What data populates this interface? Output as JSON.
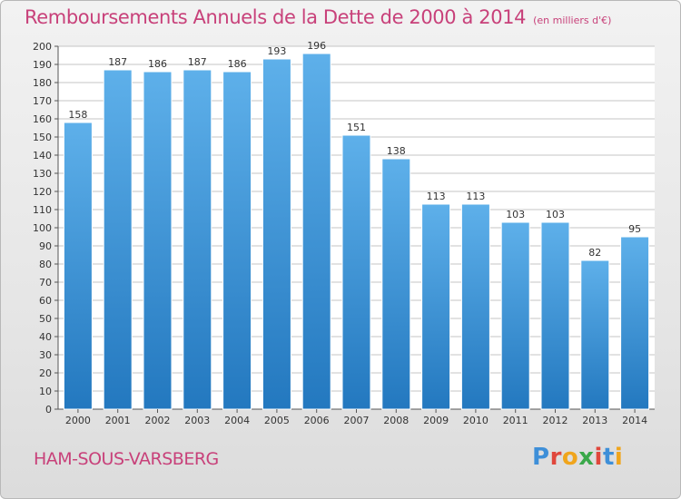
{
  "header": {
    "title": "Remboursements Annuels de la Dette de 2000 à 2014",
    "subtitle": "(en milliers d'€)"
  },
  "footer": {
    "commune": "HAM-SOUS-VARSBERG",
    "logo_text": "Proxiti",
    "logo_colors": [
      "#3e8fd8",
      "#e0473c",
      "#f0a51c",
      "#3aa84a",
      "#e0473c",
      "#3e8fd8",
      "#f0a51c"
    ]
  },
  "colors": {
    "bar_light": "#5eb0ea",
    "bar_dark": "#2378bf",
    "title": "#c8417a",
    "grid": "#c4c4c4",
    "axis": "#555555"
  },
  "chart_data": {
    "type": "bar",
    "categories": [
      "2000",
      "2001",
      "2002",
      "2003",
      "2004",
      "2005",
      "2006",
      "2007",
      "2008",
      "2009",
      "2010",
      "2011",
      "2012",
      "2013",
      "2014"
    ],
    "values": [
      158,
      187,
      186,
      187,
      186,
      193,
      196,
      151,
      138,
      113,
      113,
      103,
      103,
      82,
      95
    ],
    "ylim": [
      0,
      200
    ],
    "ytick_step": 10,
    "grid": true,
    "xlabel": "",
    "ylabel": ""
  }
}
